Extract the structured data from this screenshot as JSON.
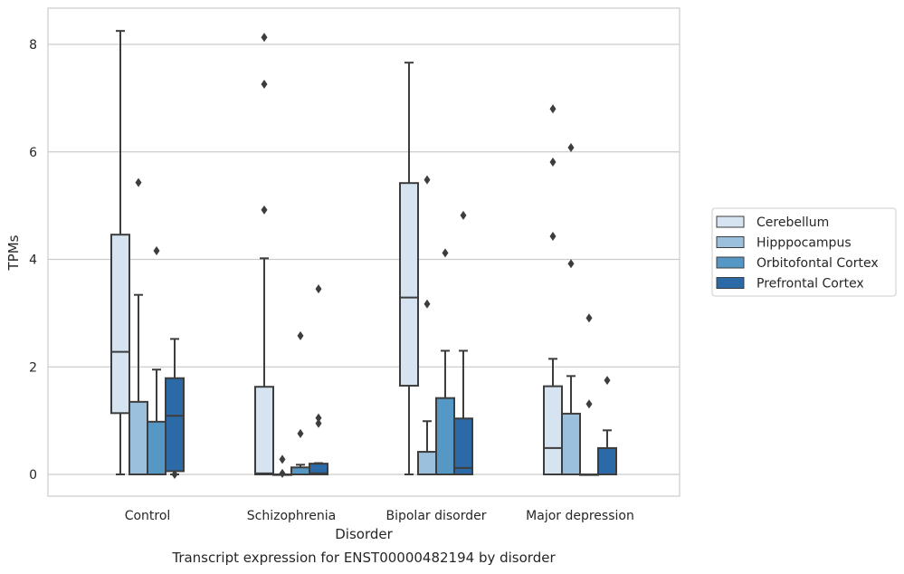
{
  "chart_data": {
    "type": "box",
    "title": "",
    "caption": "Transcript expression for ENST00000482194 by disorder",
    "xlabel": "Disorder",
    "ylabel": "TPMs",
    "ylim": [
      -0.4,
      8.7
    ],
    "yticks": [
      0,
      2,
      4,
      6,
      8
    ],
    "grid": "horizontal",
    "legend_position": "right",
    "categories": [
      "Control",
      "Schizophrenia",
      "Bipolar disorder",
      "Major depression"
    ],
    "series": [
      {
        "name": "Cerebellum",
        "color": "#d6e4f1",
        "boxes": [
          {
            "whisker_low": 0,
            "q1": 1.14,
            "median": 2.28,
            "q3": 4.46,
            "whisker_high": 8.25,
            "outliers": []
          },
          {
            "whisker_low": 0,
            "q1": 0,
            "median": 0.02,
            "q3": 1.63,
            "whisker_high": 4.02,
            "outliers": [
              4.92,
              7.26,
              8.13
            ]
          },
          {
            "whisker_low": 0,
            "q1": 1.65,
            "median": 3.29,
            "q3": 5.42,
            "whisker_high": 7.66,
            "outliers": []
          },
          {
            "whisker_low": 0,
            "q1": 0,
            "median": 0.49,
            "q3": 1.64,
            "whisker_high": 2.15,
            "outliers": [
              4.43,
              5.81,
              6.8
            ]
          }
        ]
      },
      {
        "name": "Hipppocampus",
        "color": "#9ac0dd",
        "boxes": [
          {
            "whisker_low": 0,
            "q1": 0,
            "median": 0,
            "q3": 1.35,
            "whisker_high": 3.34,
            "outliers": [
              5.43
            ]
          },
          {
            "whisker_low": 0,
            "q1": 0,
            "median": 0,
            "q3": 0,
            "whisker_high": 0,
            "outliers": [
              0.28,
              0.02
            ]
          },
          {
            "whisker_low": 0,
            "q1": 0,
            "median": 0,
            "q3": 0.42,
            "whisker_high": 0.99,
            "outliers": [
              3.17,
              5.48
            ]
          },
          {
            "whisker_low": 0,
            "q1": 0,
            "median": 0,
            "q3": 1.13,
            "whisker_high": 1.83,
            "outliers": [
              3.92,
              6.08
            ]
          }
        ]
      },
      {
        "name": "Orbitofontal Cortex",
        "color": "#5597c5",
        "boxes": [
          {
            "whisker_low": 0,
            "q1": 0,
            "median": 0,
            "q3": 0.98,
            "whisker_high": 1.95,
            "outliers": [
              4.16
            ]
          },
          {
            "whisker_low": 0,
            "q1": 0,
            "median": 0,
            "q3": 0.13,
            "whisker_high": 0.18,
            "outliers": [
              0.76,
              2.58
            ]
          },
          {
            "whisker_low": 0,
            "q1": 0,
            "median": 0,
            "q3": 1.42,
            "whisker_high": 2.3,
            "outliers": [
              4.12
            ]
          },
          {
            "whisker_low": 0,
            "q1": 0,
            "median": 0,
            "q3": 0,
            "whisker_high": 0,
            "outliers": [
              1.31,
              2.91
            ]
          }
        ]
      },
      {
        "name": "Prefrontal Cortex",
        "color": "#2b6aa6",
        "boxes": [
          {
            "whisker_low": 0,
            "q1": 0.06,
            "median": 1.09,
            "q3": 1.79,
            "whisker_high": 2.52,
            "outliers": [
              0
            ]
          },
          {
            "whisker_low": 0,
            "q1": 0,
            "median": 0.02,
            "q3": 0.2,
            "whisker_high": 0.21,
            "outliers": [
              0.95,
              1.05,
              3.45
            ]
          },
          {
            "whisker_low": 0,
            "q1": 0,
            "median": 0.12,
            "q3": 1.04,
            "whisker_high": 2.3,
            "outliers": [
              4.82
            ]
          },
          {
            "whisker_low": 0,
            "q1": 0,
            "median": 0,
            "q3": 0.49,
            "whisker_high": 0.82,
            "outliers": [
              1.75
            ]
          }
        ]
      }
    ]
  }
}
